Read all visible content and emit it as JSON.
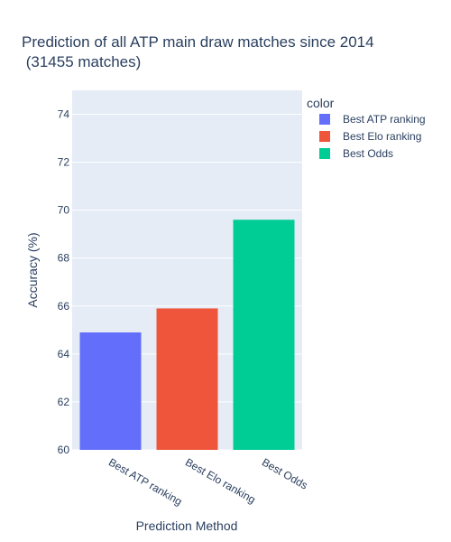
{
  "chart_data": {
    "type": "bar",
    "title_lines": [
      "Prediction of all ATP main draw matches since 2014",
      " (31455 matches)"
    ],
    "xlabel": "Prediction Method",
    "ylabel": "Accuracy (%)",
    "categories": [
      "Best ATP ranking",
      "Best Elo ranking",
      "Best Odds"
    ],
    "values": [
      64.9,
      65.9,
      69.6
    ],
    "colors": [
      "#636efa",
      "#ef553b",
      "#00cc96"
    ],
    "ylim": [
      60,
      75
    ],
    "yticks": [
      60,
      62,
      64,
      66,
      68,
      70,
      72,
      74
    ],
    "grid": true,
    "plot_bg": "#e5ecf6",
    "legend": {
      "title": "color",
      "position": "top-right",
      "items": [
        "Best ATP ranking",
        "Best Elo ranking",
        "Best Odds"
      ]
    }
  }
}
